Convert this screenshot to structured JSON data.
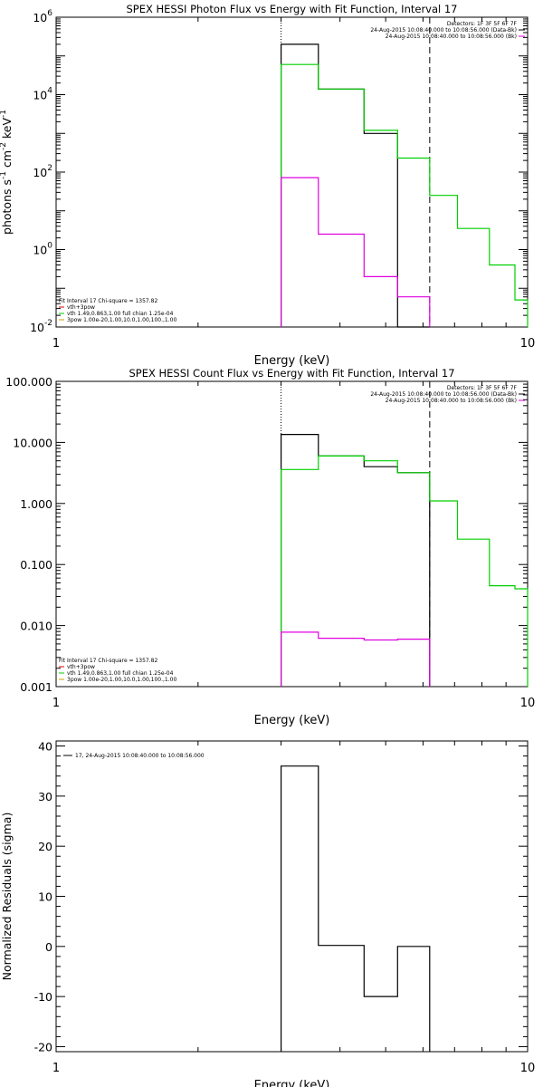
{
  "chart_data": [
    {
      "type": "line",
      "title": "SPEX HESSI Photon Flux vs Energy with Fit Function, Interval 17",
      "xlabel": "Energy (keV)",
      "ylabel_parts": [
        "photons s",
        "-1",
        " cm",
        "-2",
        " keV",
        "-1"
      ],
      "xscale": "log",
      "yscale": "log",
      "xlim": [
        1,
        10
      ],
      "ylim": [
        0.01,
        1000000
      ],
      "x_ticks": [
        1,
        10
      ],
      "x_tick_labels": [
        "1",
        "10"
      ],
      "y_ticks": [
        0.01,
        1,
        100,
        10000,
        1000000
      ],
      "y_tick_labels": [
        [
          "10",
          "-2"
        ],
        [
          "10",
          "0"
        ],
        [
          "10",
          "2"
        ],
        [
          "10",
          "4"
        ],
        [
          "10",
          "6"
        ]
      ],
      "dotted_line_x": 3.0,
      "dashed_line_x": 6.2,
      "legend_top": [
        "Detectors: 1F 3F 5F 6F 7F",
        "24-Aug-2015 10:08:40.000 to 10:08:56.000 (Data-Bk)",
        "24-Aug-2015 10:08:40.000 to 10:08:56.000 (Bk)"
      ],
      "legend_top_colors": [
        "",
        "#000000",
        "#e000e0"
      ],
      "legend_bottom": [
        "Fit Interval 17    Chi-square = 1357.82",
        "vth+3pow",
        "vth 1.49,0.863,1.00  full chian 1.25e-04",
        "3pow 1.00e-20,1.00,10.0,1.00,100.,1.00"
      ],
      "legend_bottom_colors": [
        "",
        "#e00000",
        "#00d000",
        "#d0a000"
      ],
      "series": [
        {
          "name": "24-Aug-2015 10:08:40.000 to 10:08:56.000 (Data-Bk)",
          "color": "#000000",
          "edges": [
            3.0,
            3.6,
            4.5,
            5.3,
            6.2
          ],
          "values": [
            200000,
            14000,
            1000,
            0.01
          ]
        },
        {
          "name": "vth 1.49,0.863,1.00  full chian 1.25e-04",
          "color": "#00d000",
          "edges": [
            3.0,
            3.6,
            4.5,
            5.3,
            6.2,
            7.1,
            8.3,
            9.4,
            10.0
          ],
          "values": [
            60000,
            14000,
            1200,
            230,
            25,
            3.5,
            0.4,
            0.05
          ]
        },
        {
          "name": "24-Aug-2015 10:08:40.000 to 10:08:56.000 (Bk)",
          "color": "#e000e0",
          "edges": [
            3.0,
            3.6,
            4.5,
            5.3,
            6.2
          ],
          "values": [
            72,
            2.5,
            0.2,
            0.06
          ]
        }
      ],
      "series_drop_floor": true
    },
    {
      "type": "line",
      "title": "SPEX HESSI Count Flux vs Energy with Fit Function, Interval 17",
      "xlabel": "Energy (keV)",
      "ylabel_parts": [],
      "xscale": "log",
      "yscale": "log",
      "xlim": [
        1,
        10
      ],
      "ylim": [
        0.001,
        100
      ],
      "x_ticks": [
        1,
        10
      ],
      "x_tick_labels": [
        "1",
        "10"
      ],
      "y_ticks": [
        0.001,
        0.01,
        0.1,
        1,
        10,
        100
      ],
      "y_tick_labels": [
        [
          "0.001",
          ""
        ],
        [
          "0.010",
          ""
        ],
        [
          "0.100",
          ""
        ],
        [
          "1.000",
          ""
        ],
        [
          "10.000",
          ""
        ],
        [
          "100.000",
          ""
        ]
      ],
      "dotted_line_x": 3.0,
      "dashed_line_x": 6.2,
      "legend_top": [
        "Detectors: 1F 3F 5F 6F 7F",
        "24-Aug-2015 10:08:40.000 to 10:08:56.000 (Data-Bk)",
        "24-Aug-2015 10:08:40.000 to 10:08:56.000 (Bk)"
      ],
      "legend_top_colors": [
        "",
        "#000000",
        "#e000e0"
      ],
      "legend_bottom": [
        "Fit Interval 17    Chi-square = 1357.82",
        "vth+3pow",
        "vth 1.49,0.863,1.00  full chian 1.25e-04",
        "3pow 1.00e-20,1.00,10.0,1.00,100.,1.00"
      ],
      "legend_bottom_colors": [
        "",
        "#e00000",
        "#00d000",
        "#d0a000"
      ],
      "series": [
        {
          "name": "24-Aug-2015 10:08:40.000 to 10:08:56.000 (Data-Bk)",
          "color": "#000000",
          "edges": [
            3.0,
            3.6,
            4.5,
            5.3,
            6.2
          ],
          "values": [
            13.5,
            6.0,
            4.0,
            3.2
          ]
        },
        {
          "name": "vth 1.49,0.863,1.00  full chian 1.25e-04",
          "color": "#00d000",
          "edges": [
            3.0,
            3.6,
            4.5,
            5.3,
            6.2,
            7.1,
            8.3,
            9.4,
            10.0
          ],
          "values": [
            3.6,
            6.0,
            5.0,
            3.2,
            1.1,
            0.26,
            0.045,
            0.04
          ]
        },
        {
          "name": "24-Aug-2015 10:08:40.000 to 10:08:56.000 (Bk)",
          "color": "#e000e0",
          "edges": [
            3.0,
            3.6,
            4.5,
            5.3,
            6.2
          ],
          "values": [
            0.0078,
            0.0062,
            0.0058,
            0.006
          ]
        }
      ],
      "series_drop_floor": true
    },
    {
      "type": "line",
      "title": "",
      "xlabel": "Energy (keV)",
      "ylabel_parts": [
        "Normalized Residuals (sigma)"
      ],
      "xscale": "log",
      "yscale": "linear",
      "xlim": [
        1,
        10
      ],
      "ylim": [
        -21,
        41
      ],
      "x_ticks": [
        1,
        10
      ],
      "x_tick_labels": [
        "1",
        "10"
      ],
      "y_ticks": [
        -20,
        -10,
        0,
        10,
        20,
        30,
        40
      ],
      "y_tick_labels": [
        [
          "-20",
          ""
        ],
        [
          "-10",
          ""
        ],
        [
          "0",
          ""
        ],
        [
          "10",
          ""
        ],
        [
          "20",
          ""
        ],
        [
          "30",
          ""
        ],
        [
          "40",
          ""
        ]
      ],
      "legend_top": [
        "17, 24-Aug-2015 10:08:40.000 to 10:08:56.000"
      ],
      "legend_top_colors": [
        "#000000"
      ],
      "legend_bottom": [],
      "legend_bottom_colors": [],
      "series": [
        {
          "name": "17, 24-Aug-2015 10:08:40.000 to 10:08:56.000",
          "color": "#000000",
          "edges": [
            3.0,
            3.6,
            4.5,
            5.3,
            6.2
          ],
          "values": [
            36,
            0.2,
            -10,
            0
          ]
        }
      ],
      "series_drop_floor": true
    }
  ]
}
